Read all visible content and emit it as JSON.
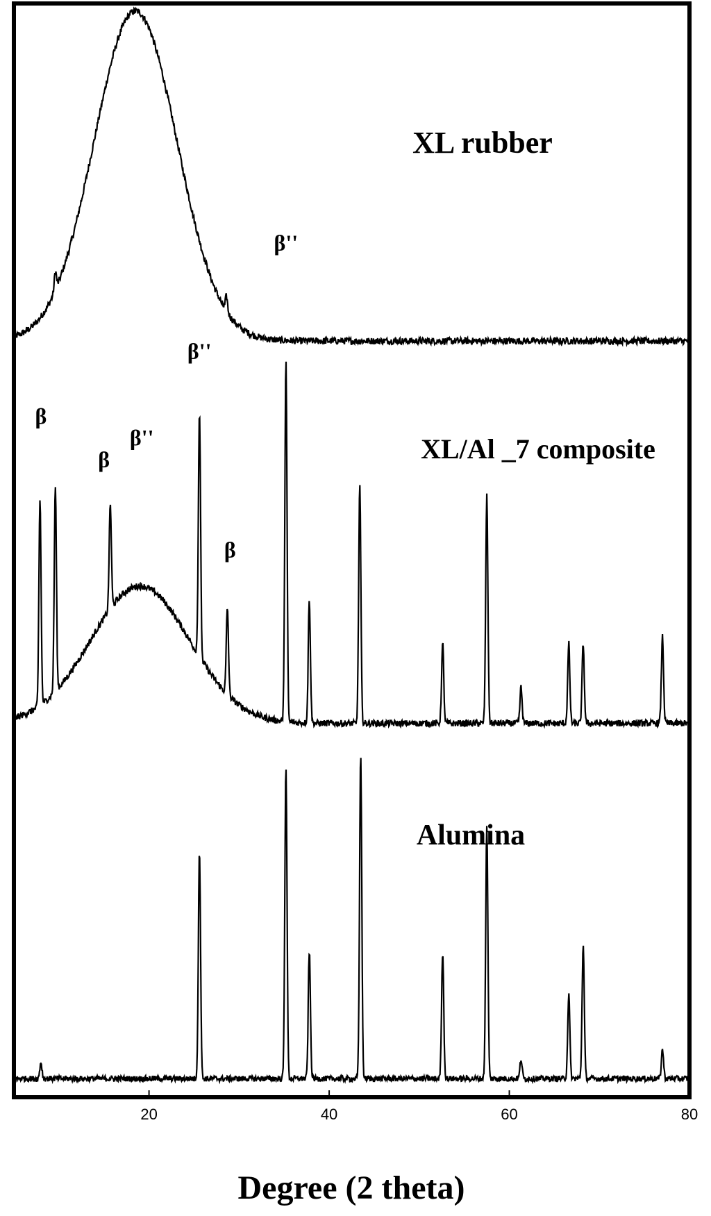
{
  "chart_data": {
    "type": "line",
    "xlabel": "Degree (2 theta)",
    "ylabel": "",
    "xlim": [
      5,
      80
    ],
    "x_ticks": [
      20,
      40,
      60,
      80
    ],
    "y_ticks_shown": false,
    "grid": false,
    "legend": "none",
    "y_scale": "arbitrary intensity, curves vertically offset",
    "series": [
      {
        "name": "XL rubber",
        "color": "#000000",
        "baseline": 0.1,
        "amorphous_hump": {
          "center": 18.5,
          "height": 0.88,
          "width": 4.6
        },
        "peaks": [
          {
            "x": 9.6,
            "height": 0.05
          },
          {
            "x": 28.6,
            "height": 0.04
          }
        ]
      },
      {
        "name": "XL/Al _7 composite",
        "color": "#000000",
        "baseline": 0.07,
        "amorphous_hump": {
          "center": 19.0,
          "height": 0.38,
          "width": 5.5
        },
        "peaks": [
          {
            "x": 7.9,
            "height": 0.57
          },
          {
            "x": 9.6,
            "height": 0.57
          },
          {
            "x": 15.7,
            "height": 0.29
          },
          {
            "x": 25.6,
            "height": 0.68
          },
          {
            "x": 28.7,
            "height": 0.24
          },
          {
            "x": 35.2,
            "height": 1.0
          },
          {
            "x": 37.8,
            "height": 0.34
          },
          {
            "x": 43.4,
            "height": 0.66
          },
          {
            "x": 52.6,
            "height": 0.22
          },
          {
            "x": 57.5,
            "height": 0.63
          },
          {
            "x": 61.3,
            "height": 0.1
          },
          {
            "x": 66.6,
            "height": 0.22
          },
          {
            "x": 68.2,
            "height": 0.22
          },
          {
            "x": 77.0,
            "height": 0.24
          }
        ]
      },
      {
        "name": "Alumina",
        "color": "#000000",
        "baseline": 0.04,
        "amorphous_hump": null,
        "peaks": [
          {
            "x": 8.0,
            "height": 0.05
          },
          {
            "x": 25.6,
            "height": 0.7
          },
          {
            "x": 35.2,
            "height": 0.96
          },
          {
            "x": 37.8,
            "height": 0.39
          },
          {
            "x": 43.5,
            "height": 1.0
          },
          {
            "x": 52.6,
            "height": 0.39
          },
          {
            "x": 57.5,
            "height": 0.77
          },
          {
            "x": 61.3,
            "height": 0.06
          },
          {
            "x": 66.6,
            "height": 0.26
          },
          {
            "x": 68.2,
            "height": 0.41
          },
          {
            "x": 77.0,
            "height": 0.09
          }
        ]
      }
    ],
    "annotations": [
      {
        "series": "XL/Al _7 composite",
        "text": "β",
        "x": 8.0,
        "y": 0.9
      },
      {
        "series": "XL/Al _7 composite",
        "text": "β",
        "x": 15.0,
        "y": 0.78
      },
      {
        "series": "XL/Al _7 composite",
        "text": "β''",
        "x": 19.2,
        "y": 0.84
      },
      {
        "series": "XL/Al _7 composite",
        "text": "β''",
        "x": 25.6,
        "y": 1.08
      },
      {
        "series": "XL/Al _7 composite",
        "text": "β",
        "x": 29.0,
        "y": 0.53
      },
      {
        "series": "XL/Al _7 composite",
        "text": "β''",
        "x": 35.2,
        "y": 1.38
      }
    ]
  }
}
